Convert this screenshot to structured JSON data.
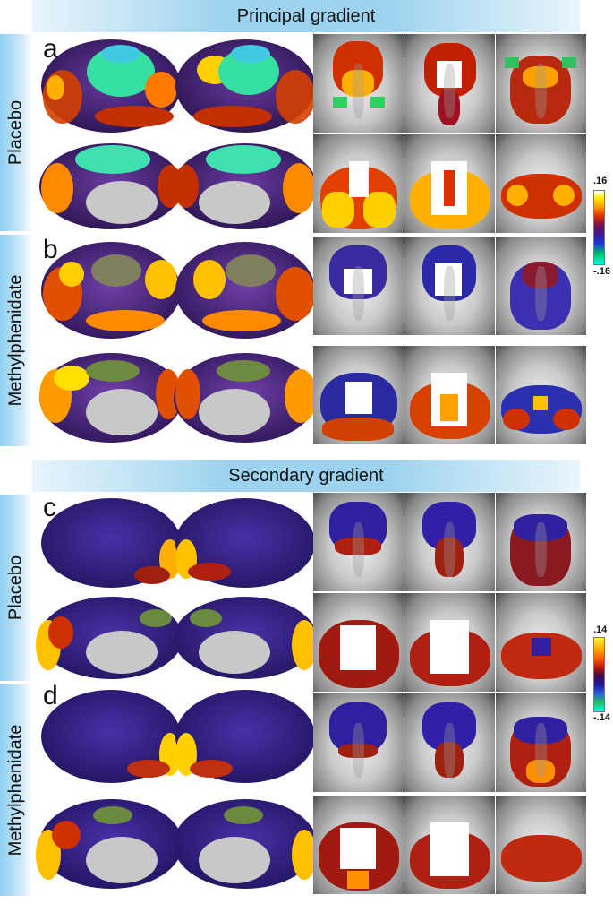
{
  "titles": {
    "principal": "Principal gradient",
    "secondary": "Secondary gradient"
  },
  "rows": [
    {
      "letter": "a",
      "label": "Placebo"
    },
    {
      "letter": "b",
      "label": "Methylphenidate"
    },
    {
      "letter": "c",
      "label": "Placebo"
    },
    {
      "letter": "d",
      "label": "Methylphenidate"
    }
  ],
  "colorbars": {
    "principal": {
      "max": ".16",
      "min": "-.16"
    },
    "secondary": {
      "max": ".14",
      "min": "-.14"
    }
  },
  "colors": {
    "banner": "#9dd3ee",
    "brain_base_principal": "#4a2a8a",
    "brain_base_secondary": "#3a2a95",
    "medial_wall": "#c8c8c8",
    "hot": "#ff8a00",
    "peak": "#ffe600",
    "cool": "#35e0a0"
  }
}
